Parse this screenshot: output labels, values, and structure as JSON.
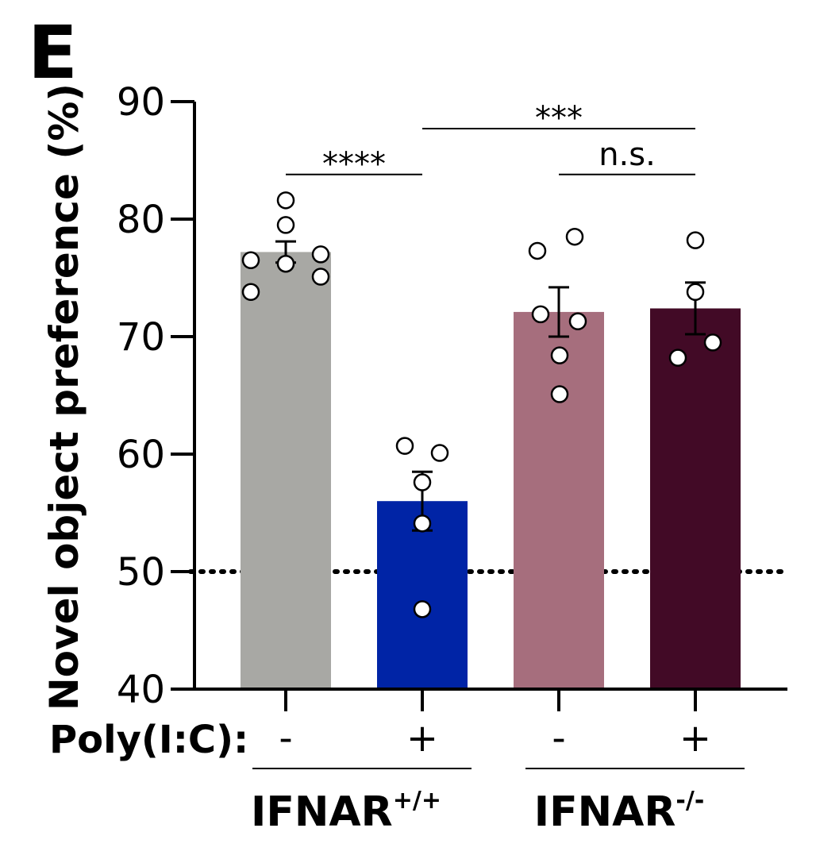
{
  "panel_label": "E",
  "chart_data": {
    "type": "bar",
    "ylabel": "Novel object preference (%)",
    "ylim": [
      40,
      90
    ],
    "yticks": [
      40,
      50,
      60,
      70,
      80,
      90
    ],
    "reference_line": {
      "value": 50,
      "style": "dotted"
    },
    "row_label": "Poly(I:C):",
    "categories": [
      "-",
      "+",
      "-",
      "+"
    ],
    "groups": [
      {
        "name": "IFNAR",
        "superscript": "+/+",
        "categories": [
          0,
          1
        ]
      },
      {
        "name": "IFNAR",
        "superscript": "-/-",
        "categories": [
          2,
          3
        ]
      }
    ],
    "colors": [
      "#a8a8a4",
      "#0024a6",
      "#a66e7d",
      "#420a26"
    ],
    "values": [
      77.2,
      56.0,
      72.1,
      72.4
    ],
    "errors": [
      0.9,
      2.5,
      2.1,
      2.2
    ],
    "points": [
      [
        81.6,
        79.5,
        77.0,
        76.5,
        76.2,
        75.1,
        73.8
      ],
      [
        60.7,
        60.1,
        57.6,
        54.1,
        46.8
      ],
      [
        78.5,
        77.3,
        71.9,
        71.3,
        68.4,
        65.1
      ],
      [
        78.2,
        73.8,
        69.5,
        68.2
      ]
    ],
    "comparisons": [
      {
        "from": 0,
        "to": 1,
        "label": "****",
        "y": 83.8
      },
      {
        "from": 1,
        "to": 3,
        "label": "***",
        "y": 87.7
      },
      {
        "from": 2,
        "to": 3,
        "label": "n.s.",
        "y": 83.8
      }
    ]
  }
}
